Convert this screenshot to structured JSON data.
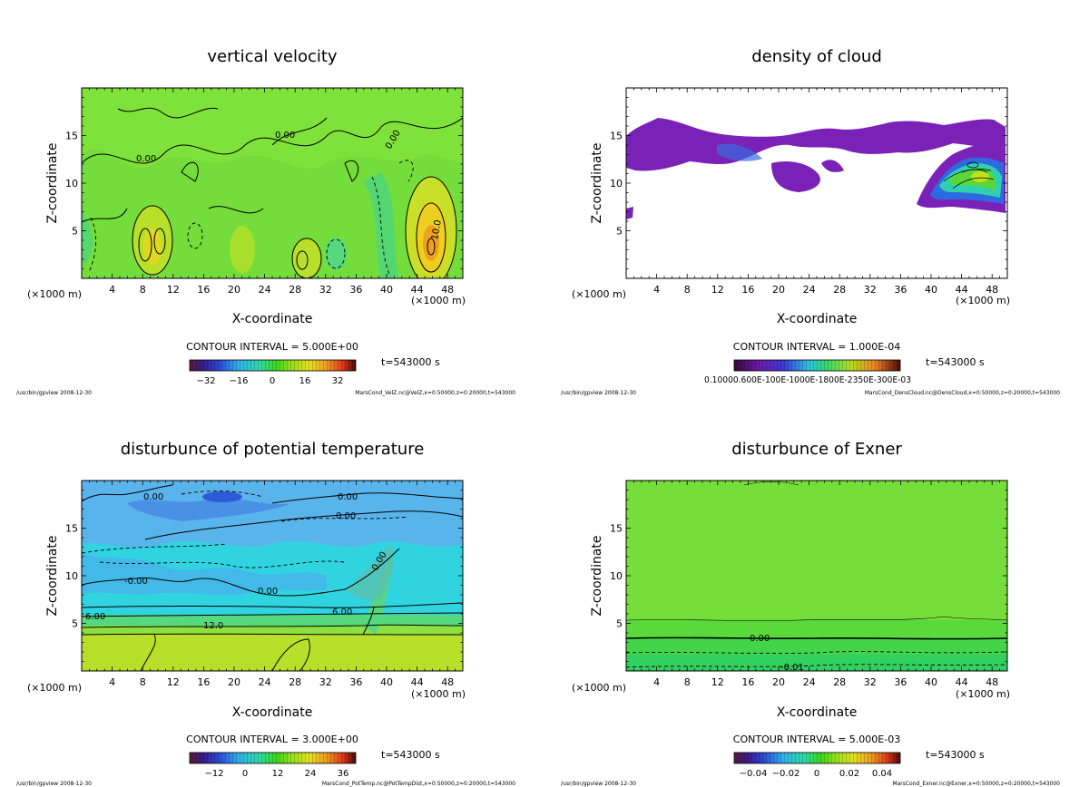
{
  "chart_data": [
    {
      "type": "heatmap",
      "title": "vertical velocity",
      "xlabel": "X-coordinate",
      "ylabel": "Z-coordinate",
      "x_unit_left": "(×1000 m)",
      "x_unit_right": "(×1000 m)",
      "xlim": [
        0,
        50
      ],
      "ylim": [
        0,
        20
      ],
      "x_ticks": [
        4,
        8,
        12,
        16,
        20,
        24,
        28,
        32,
        36,
        40,
        44,
        48
      ],
      "y_ticks": [
        5,
        10,
        15
      ],
      "contour_interval": "CONTOUR INTERVAL = 5.000E+00",
      "time": "t=543000 s",
      "colorbar_ticks": [
        "−32",
        "−16",
        "0",
        "16",
        "32"
      ],
      "contour_labels": [
        "0.00",
        "0.00",
        "0.00",
        "10.0"
      ],
      "footer_left": "/usr/bin/gpview  2008-12-30",
      "footer_right": "MarsCond_VelZ.nc@VelZ,x=0:50000,z=0:20000,t=543000"
    },
    {
      "type": "heatmap",
      "title": "density of cloud",
      "xlabel": "X-coordinate",
      "ylabel": "Z-coordinate",
      "x_unit_left": "(×1000 m)",
      "x_unit_right": "(×1000 m)",
      "xlim": [
        0,
        50
      ],
      "ylim": [
        0,
        20
      ],
      "x_ticks": [
        4,
        8,
        12,
        16,
        20,
        24,
        28,
        32,
        36,
        40,
        44,
        48
      ],
      "y_ticks": [
        5,
        10,
        15
      ],
      "contour_interval": "CONTOUR INTERVAL = 1.000E-04",
      "time": "t=543000 s",
      "colorbar_label_text": "0.10000.600E-100E-1000E-1800E-2350E-300E-03",
      "footer_left": "/usr/bin/gpview  2008-12-30",
      "footer_right": "MarsCond_DensCloud.nc@DensCloud,x=0:50000,z=0:20000,t=543000"
    },
    {
      "type": "heatmap",
      "title": "disturbunce of potential temperature",
      "xlabel": "X-coordinate",
      "ylabel": "Z-coordinate",
      "x_unit_left": "(×1000 m)",
      "x_unit_right": "(×1000 m)",
      "xlim": [
        0,
        50
      ],
      "ylim": [
        0,
        20
      ],
      "x_ticks": [
        4,
        8,
        12,
        16,
        20,
        24,
        28,
        32,
        36,
        40,
        44,
        48
      ],
      "y_ticks": [
        5,
        10,
        15
      ],
      "contour_interval": "CONTOUR INTERVAL = 3.000E+00",
      "time": "t=543000 s",
      "colorbar_ticks": [
        "−12",
        "0",
        "12",
        "24",
        "36"
      ],
      "contour_labels": [
        "0.00",
        "0.00",
        "0.00",
        "-0.00",
        "0.00",
        "6.00",
        "6.00",
        "12.0",
        "0.00"
      ],
      "footer_left": "/usr/bin/gpview  2008-12-30",
      "footer_right": "MarsCond_PotTemp.nc@PotTempDist,x=0:50000,z=0:20000,t=543000"
    },
    {
      "type": "heatmap",
      "title": "disturbunce of Exner",
      "xlabel": "X-coordinate",
      "ylabel": "Z-coordinate",
      "x_unit_left": "(×1000 m)",
      "x_unit_right": "(×1000 m)",
      "xlim": [
        0,
        50
      ],
      "ylim": [
        0,
        20
      ],
      "x_ticks": [
        4,
        8,
        12,
        16,
        20,
        24,
        28,
        32,
        36,
        40,
        44,
        48
      ],
      "y_ticks": [
        5,
        10,
        15
      ],
      "contour_interval": "CONTOUR INTERVAL = 5.000E-03",
      "time": "t=543000 s",
      "colorbar_ticks": [
        "−0.04",
        "−0.02",
        "0",
        "0.02",
        "0.04"
      ],
      "contour_labels": [
        "0.00",
        "-0.01"
      ],
      "footer_left": "/usr/bin/gpview  2008-12-30",
      "footer_right": "MarsCond_Exner.nc@Exner,x=0:50000,z=0:20000,t=543000"
    }
  ]
}
